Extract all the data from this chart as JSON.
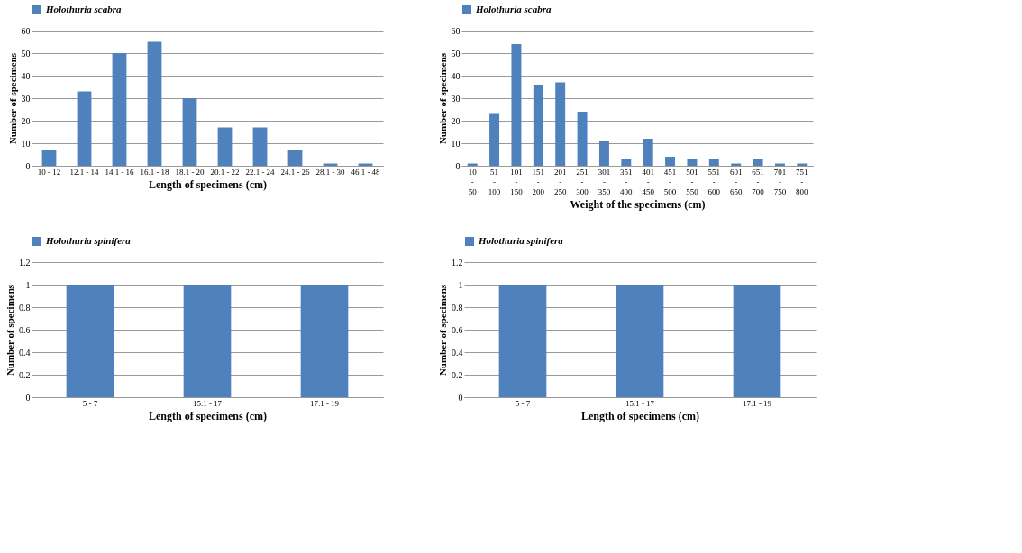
{
  "chart_data": [
    {
      "type": "bar",
      "xlabel": "Length of specimens (cm)",
      "ylabel": "Number of specimens",
      "categories": [
        "10 - 12",
        "12.1 - 14",
        "14.1 - 16",
        "16.1 - 18",
        "18.1 - 20",
        "20.1 - 22",
        "22.1 - 24",
        "24.1 - 26",
        "28.1 - 30",
        "46.1 - 48"
      ],
      "series": [
        {
          "name": "Holothuria scabra",
          "color": "#4f81bd",
          "values": [
            7,
            33,
            50,
            55,
            30,
            17,
            17,
            7,
            1,
            1
          ]
        }
      ],
      "ylim": [
        0,
        60
      ],
      "yticks": [
        0,
        10,
        20,
        30,
        40,
        50,
        60
      ],
      "grid": "y",
      "legend": "top"
    },
    {
      "type": "bar",
      "xlabel": "Weight of the specimens (cm)",
      "ylabel": "Number of specimens",
      "categories": [
        "10 - 50",
        "51 - 100",
        "101 - 150",
        "151 - 200",
        "201 - 250",
        "251 - 300",
        "301 - 350",
        "351 - 400",
        "401 - 450",
        "451 - 500",
        "501 - 550",
        "551 - 600",
        "601 - 650",
        "651 - 700",
        "701 - 750",
        "751 - 800"
      ],
      "series": [
        {
          "name": "Holothuria scabra",
          "color": "#4f81bd",
          "values": [
            1,
            23,
            54,
            36,
            37,
            24,
            11,
            3,
            12,
            4,
            3,
            3,
            1,
            3,
            1,
            1
          ]
        }
      ],
      "ylim": [
        0,
        60
      ],
      "yticks": [
        0,
        10,
        20,
        30,
        40,
        50,
        60
      ],
      "grid": "y",
      "legend": "top"
    },
    {
      "type": "bar",
      "xlabel": "Length of specimens (cm)",
      "ylabel": "Number of specimens",
      "categories": [
        "5 - 7",
        "15.1 - 17",
        "17.1 - 19"
      ],
      "series": [
        {
          "name": "Holothuria spinifera",
          "color": "#4f81bd",
          "values": [
            1,
            1,
            1
          ]
        }
      ],
      "ylim": [
        0,
        1.2
      ],
      "yticks": [
        0,
        0.2,
        0.4,
        0.6,
        0.8,
        1,
        1.2
      ],
      "grid": "y",
      "legend": "top"
    },
    {
      "type": "bar",
      "xlabel": "Length of specimens (cm)",
      "ylabel": "Number of specimens",
      "categories": [
        "5 - 7",
        "15.1 - 17",
        "17.1 - 19"
      ],
      "series": [
        {
          "name": "Holothuria spinifera",
          "color": "#4f81bd",
          "values": [
            1,
            1,
            1
          ]
        }
      ],
      "ylim": [
        0,
        1.2
      ],
      "yticks": [
        0,
        0.2,
        0.4,
        0.6,
        0.8,
        1,
        1.2
      ],
      "grid": "y",
      "legend": "top"
    }
  ]
}
